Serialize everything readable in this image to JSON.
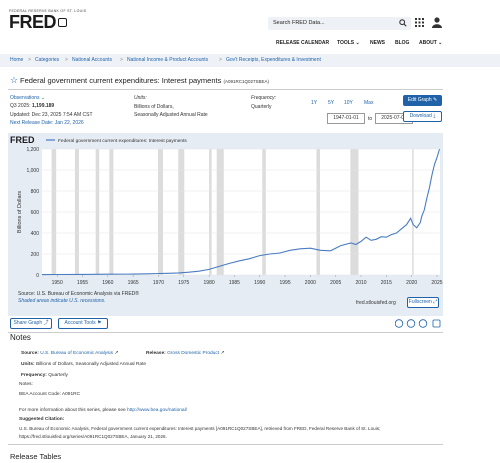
{
  "header": {
    "org": "FEDERAL RESERVE BANK OF ST. LOUIS",
    "logo": "FRED",
    "search_placeholder": "Search FRED Data...",
    "nav": [
      "RELEASE CALENDAR",
      "TOOLS ⌄",
      "NEWS",
      "BLOG",
      "ABOUT ⌄"
    ]
  },
  "breadcrumb": [
    "Home",
    "Categories",
    "National Accounts",
    "National Income & Product Accounts",
    "Gov't Receipts, Expenditures & Investment"
  ],
  "series": {
    "title": "Federal government current expenditures: Interest payments",
    "code": "(A091RC1Q027SBEA)",
    "observations_label": "Observations ⌄",
    "latest": "Q3 2025:",
    "latest_value": "1,199.189",
    "updated": "Updated: Dec 23, 2025 7:54 AM CST",
    "next_release": "Next Release Date: Jan 22, 2026",
    "units_label": "Units:",
    "units": "Billions of Dollars,",
    "units2": "Seasonally Adjusted Annual Rate",
    "frequency_label": "Frequency:",
    "frequency": "Quarterly",
    "ranges": [
      "1Y",
      "5Y",
      "10Y",
      "Max"
    ],
    "start_date": "1947-01-01",
    "to": "to",
    "end_date": "2025-07-01",
    "edit_graph": "Edit Graph",
    "download": "Download"
  },
  "chart_data": {
    "type": "line",
    "title": "Federal government current expenditures: Interest payments",
    "ylabel": "Billions of Dollars",
    "xlabel": "",
    "ylim": [
      0,
      1200
    ],
    "yticks": [
      0,
      200,
      400,
      600,
      800,
      1000,
      1200
    ],
    "xticks": [
      1950,
      1955,
      1960,
      1965,
      1970,
      1975,
      1980,
      1985,
      1990,
      1995,
      2000,
      2005,
      2010,
      2015,
      2020,
      2025
    ],
    "xlim": [
      1947,
      2025.6
    ],
    "recessions": [
      [
        1948.9,
        1949.8
      ],
      [
        1953.5,
        1954.3
      ],
      [
        1957.6,
        1958.3
      ],
      [
        1960.3,
        1961.1
      ],
      [
        1969.9,
        1970.9
      ],
      [
        1973.9,
        1975.1
      ],
      [
        1980.0,
        1980.5
      ],
      [
        1981.5,
        1982.9
      ],
      [
        1990.5,
        1991.2
      ],
      [
        2001.2,
        2001.9
      ],
      [
        2007.9,
        2009.5
      ],
      [
        2020.1,
        2020.3
      ]
    ],
    "series": [
      {
        "name": "Federal government current expenditures: Interest payments",
        "color": "#4a7cc2",
        "x": [
          1947,
          1950,
          1955,
          1960,
          1965,
          1968,
          1970,
          1972,
          1974,
          1976,
          1978,
          1980,
          1982,
          1984,
          1986,
          1988,
          1990,
          1992,
          1994,
          1996,
          1998,
          2000,
          2002,
          2004,
          2006,
          2008,
          2009,
          2010,
          2011,
          2012,
          2013,
          2014,
          2015,
          2016,
          2017,
          2018,
          2019,
          2019.8,
          2020.3,
          2021,
          2021.7,
          2022,
          2022.5,
          2023,
          2023.5,
          2024,
          2024.5,
          2025,
          2025.5
        ],
        "y": [
          4,
          5,
          6,
          8,
          9,
          11,
          14,
          16,
          20,
          27,
          36,
          53,
          82,
          110,
          135,
          155,
          185,
          200,
          210,
          235,
          250,
          255,
          235,
          230,
          280,
          305,
          290,
          320,
          360,
          330,
          340,
          365,
          360,
          385,
          400,
          440,
          480,
          540,
          480,
          450,
          500,
          560,
          620,
          730,
          830,
          950,
          1050,
          1120,
          1199
        ]
      }
    ]
  },
  "chart_ui": {
    "logo": "FRED",
    "source": "Source: U.S. Bureau of Economic Analysis via FRED®",
    "shaded": "Shaded areas indicate U.S. recessions.",
    "site": "fred.stlouisfed.org",
    "fullscreen": "Fullscreen ⤢"
  },
  "share": {
    "share_graph": "Share Graph",
    "account_tools": "Account Tools"
  },
  "notes": {
    "heading": "Notes",
    "source_label": "Source:",
    "source": "U.S. Bureau of Economic Analysis",
    "release_label": "Release:",
    "release": "Gross Domestic Product",
    "units_label": "Units:",
    "units": "Billions of Dollars, Seasonally Adjusted Annual Rate",
    "freq_label": "Frequency:",
    "freq": "Quarterly",
    "notes_label": "Notes:",
    "bea_code": "BEA Account Code: A091RC",
    "more_info": "For more information about this series, please see",
    "more_link": "http://www.bea.gov/national/",
    "suggested_label": "Suggested Citation:",
    "citation1": "U.S. Bureau of Economic Analysis, Federal government current expenditures: Interest payments [A091RC1Q027SBEA], retrieved from FRED, Federal Reserve Bank of St. Louis;",
    "citation2": "https://fred.stlouisfed.org/series/A091RC1Q027SBEA, January 21, 2026."
  },
  "release_tables": "Release Tables"
}
